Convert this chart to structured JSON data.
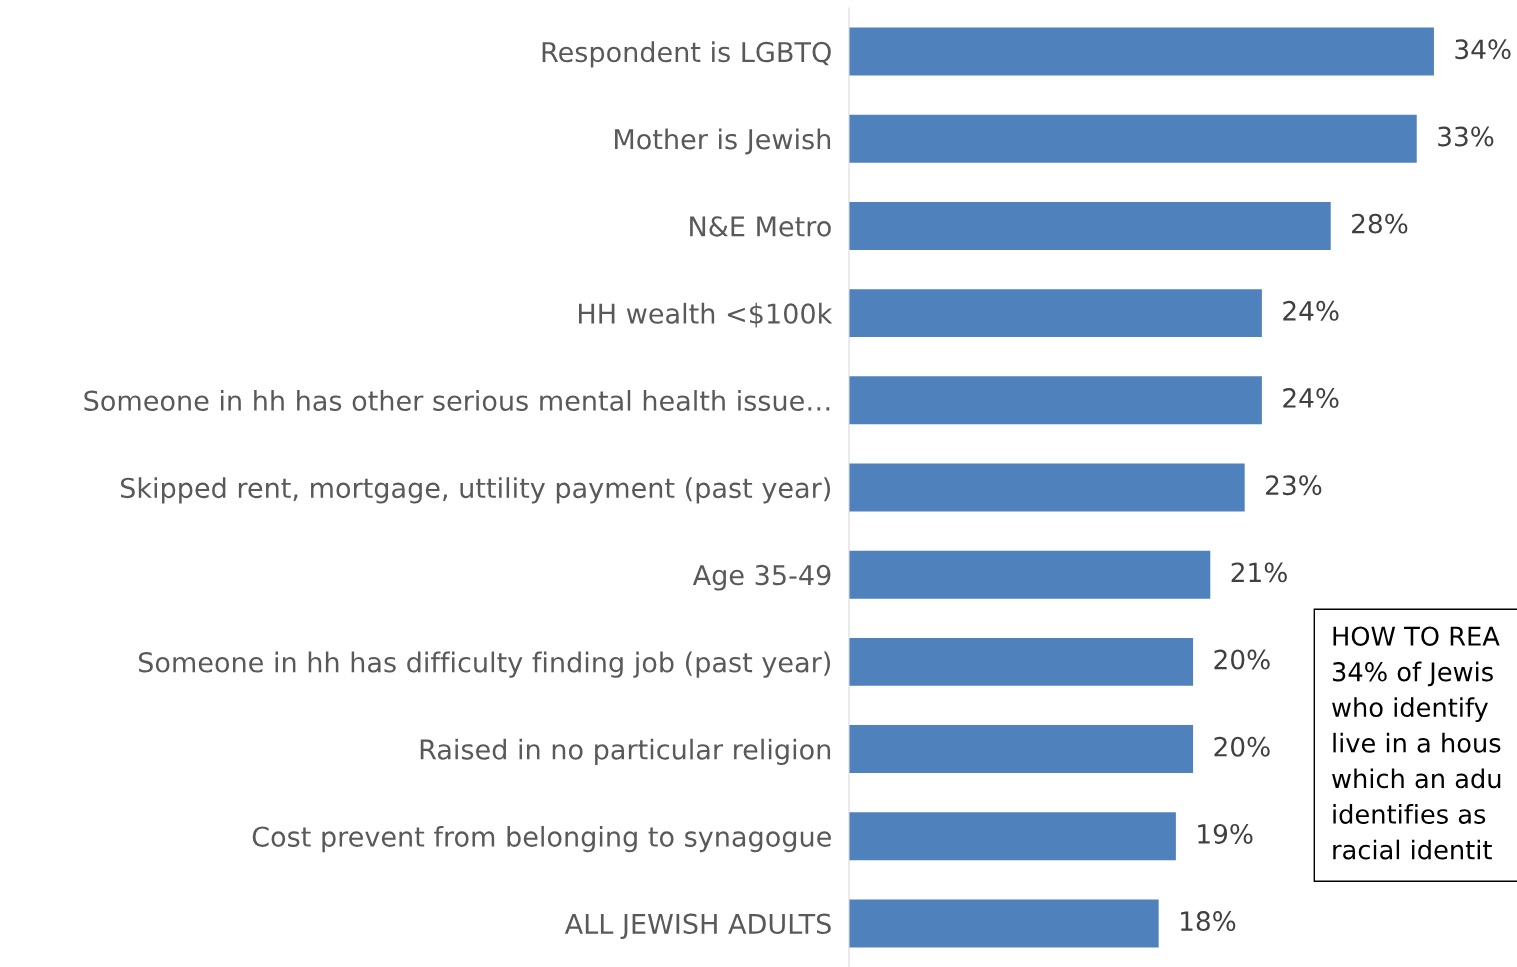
{
  "chart_data": {
    "type": "bar",
    "orientation": "horizontal",
    "categories": [
      "Respondent is LGBTQ",
      "Mother is Jewish",
      "N&E Metro",
      "HH wealth <$100k",
      "Someone in hh has other serious mental health issue…",
      "Skipped rent, mortgage, uttility payment (past year)",
      "Age 35-49",
      "Someone in hh has difficulty finding job (past year)",
      "Raised in no particular religion",
      "Cost prevent from belonging to synagogue",
      "ALL JEWISH ADULTS"
    ],
    "values": [
      34,
      33,
      28,
      24,
      24,
      23,
      21,
      20,
      20,
      19,
      18
    ],
    "value_labels": [
      "34%",
      "33%",
      "28%",
      "24%",
      "24%",
      "23%",
      "21%",
      "20%",
      "20%",
      "19%",
      "18%"
    ],
    "color": "#4f81bd",
    "annotations": [
      "HOW TO REA\n34% of Jewis\nwho identify\nlive in a hous\nwhich an adu\nidentifies as\nracial identit"
    ]
  }
}
